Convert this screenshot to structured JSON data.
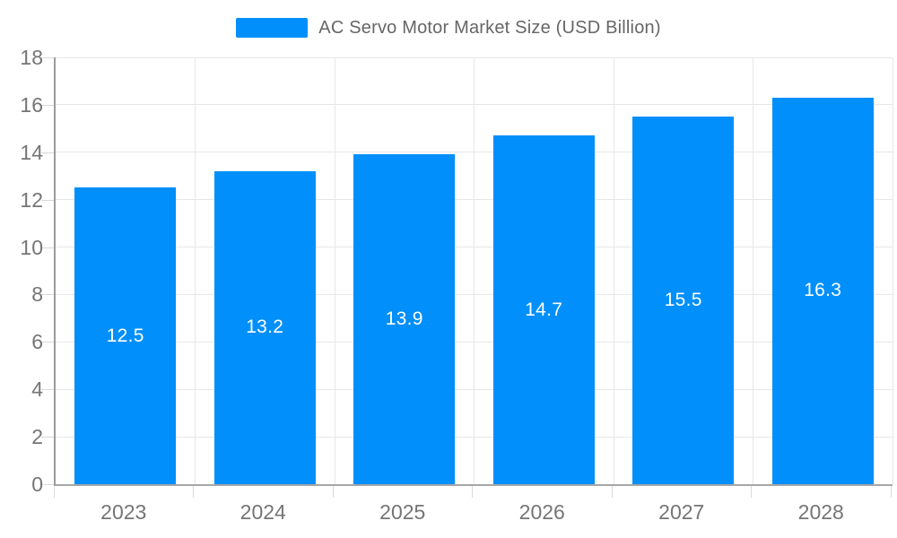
{
  "legend": {
    "label": "AC Servo Motor Market Size (USD Billion)"
  },
  "chart_data": {
    "type": "bar",
    "title": "AC Servo Motor Market Size (USD Billion)",
    "categories": [
      "2023",
      "2024",
      "2025",
      "2026",
      "2027",
      "2028"
    ],
    "series": [
      {
        "name": "AC Servo Motor Market Size (USD Billion)",
        "values": [
          12.5,
          13.2,
          13.9,
          14.7,
          15.5,
          16.3
        ]
      }
    ],
    "data_labels": [
      "12.5",
      "13.2",
      "13.9",
      "14.7",
      "15.5",
      "16.3"
    ],
    "xlabel": "",
    "ylabel": "",
    "ylim": [
      0,
      18
    ],
    "ytick_step": 2,
    "yticks": [
      0,
      2,
      4,
      6,
      8,
      10,
      12,
      14,
      16,
      18
    ],
    "grid": "horizontal+vertical",
    "legend_position": "top",
    "colors": {
      "bar": "#008FFB",
      "gridline": "#e7e7e7",
      "tick": "#d9d9d9",
      "axis_line": "#a6a6a6",
      "axis_label": "#757575",
      "title_text": "#666666",
      "data_label": "#ffffff",
      "background": "#ffffff"
    }
  }
}
